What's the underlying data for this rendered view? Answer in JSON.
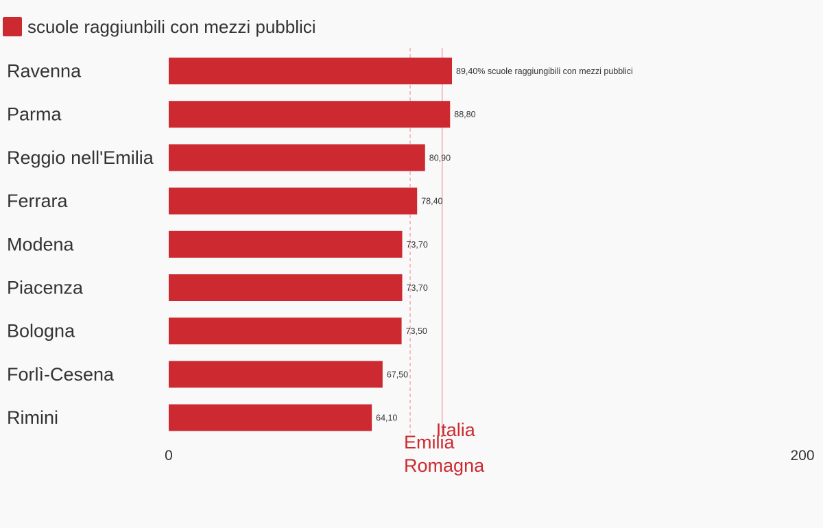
{
  "colors": {
    "bar": "#cc2a30",
    "reference": "#cc2a30",
    "text": "#333333",
    "background": "#f9f9f9"
  },
  "chart_data": {
    "type": "bar",
    "orientation": "horizontal",
    "legend": {
      "label": "scuole raggiunbili con mezzi pubblici",
      "position": "top-left"
    },
    "categories": [
      "Ravenna",
      "Parma",
      "Reggio nell'Emilia",
      "Ferrara",
      "Modena",
      "Piacenza",
      "Bologna",
      "Forlì-Cesena",
      "Rimini"
    ],
    "values": [
      89.4,
      88.8,
      80.9,
      78.4,
      73.7,
      73.7,
      73.5,
      67.5,
      64.1
    ],
    "data_labels": [
      "89,40% scuole raggiungibili con mezzi pubblici",
      "88,80",
      "80,90",
      "78,40",
      "73,70",
      "73,70",
      "73,50",
      "67,50",
      "64,10"
    ],
    "xlim": [
      0,
      200
    ],
    "x_ticks": [
      "0",
      "200"
    ],
    "reference_lines": [
      {
        "label": "Emilia Romagna",
        "value": 76.2,
        "style": "dashed"
      },
      {
        "label": "Italia",
        "value": 86.3,
        "style": "solid"
      }
    ],
    "grid": false
  }
}
